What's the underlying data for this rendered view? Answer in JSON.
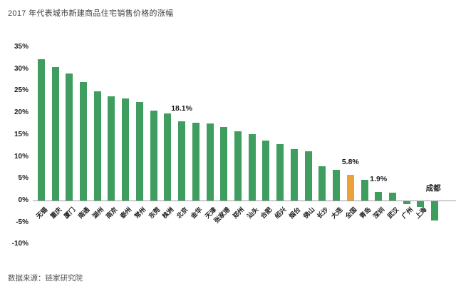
{
  "page": {
    "title": "2017 年代表城市新建商品住宅销售价格的涨幅",
    "source": "数据来源：链家研究院"
  },
  "colors": {
    "bar_green": "#3F9E5F",
    "bar_highlight_orange": "#E9A23C",
    "axis_line": "#9B9B9B",
    "text_dark": "#1F1F1F"
  },
  "chart_data": {
    "type": "bar",
    "title": "2017 年代表城市新建商品住宅销售价格的涨幅",
    "categories": [
      "无锡",
      "重庆",
      "厦门",
      "南通",
      "湖州",
      "南京",
      "泰州",
      "常州",
      "东莞",
      "株洲",
      "北京",
      "金华",
      "天津",
      "张家港",
      "郑州",
      "汕头",
      "合肥",
      "绍兴",
      "烟台",
      "佛山",
      "长沙",
      "大连",
      "全国",
      "青岛",
      "深圳",
      "武汉",
      "广州",
      "上海",
      "成都"
    ],
    "values": [
      32.2,
      30.5,
      29.0,
      27.0,
      24.9,
      23.8,
      23.3,
      22.5,
      20.5,
      19.9,
      18.1,
      17.8,
      17.5,
      16.8,
      15.8,
      15.1,
      13.7,
      12.9,
      11.7,
      11.2,
      7.8,
      7.0,
      5.8,
      4.7,
      1.9,
      1.8,
      -0.7,
      -1.3,
      -4.4
    ],
    "highlight_category": "全国",
    "data_labels": [
      {
        "category": "北京",
        "text": "18.1%"
      },
      {
        "category": "全国",
        "text": "5.8%"
      },
      {
        "category": "深圳",
        "text": "1.9%"
      }
    ],
    "category_label_above": [
      "成都"
    ],
    "xlabel": "",
    "ylabel": "",
    "ylim": [
      -10,
      35
    ],
    "ytick_step": 5,
    "ytick_suffix": "%",
    "grid": false,
    "legend": false,
    "source": "数据来源：链家研究院"
  }
}
